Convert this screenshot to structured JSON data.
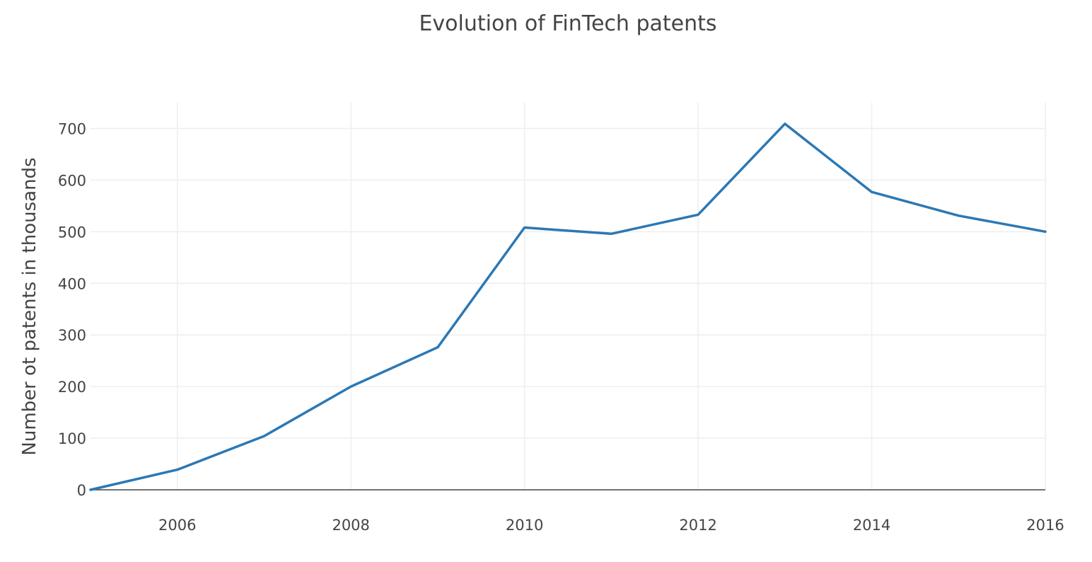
{
  "chart_data": {
    "type": "line",
    "title": "Evolution of FinTech patents",
    "xlabel": "",
    "ylabel": "Number ot patents in thousands",
    "x": [
      2005,
      2006,
      2007,
      2008,
      2009,
      2010,
      2011,
      2012,
      2013,
      2014,
      2015,
      2016
    ],
    "series": [
      {
        "values": [
          0,
          39,
          104,
          200,
          276,
          508,
          496,
          533,
          709,
          577,
          531,
          500
        ]
      }
    ],
    "xlim": [
      2005,
      2016
    ],
    "ylim": [
      0,
      750
    ],
    "x_ticks": [
      2006,
      2008,
      2010,
      2012,
      2014,
      2016
    ],
    "y_ticks": [
      0,
      100,
      200,
      300,
      400,
      500,
      600,
      700
    ],
    "grid": true,
    "legend": "none",
    "colors": {
      "line": "#2c78b4",
      "grid": "#eeeeee",
      "zeroline": "#444444",
      "text": "#444444"
    }
  }
}
